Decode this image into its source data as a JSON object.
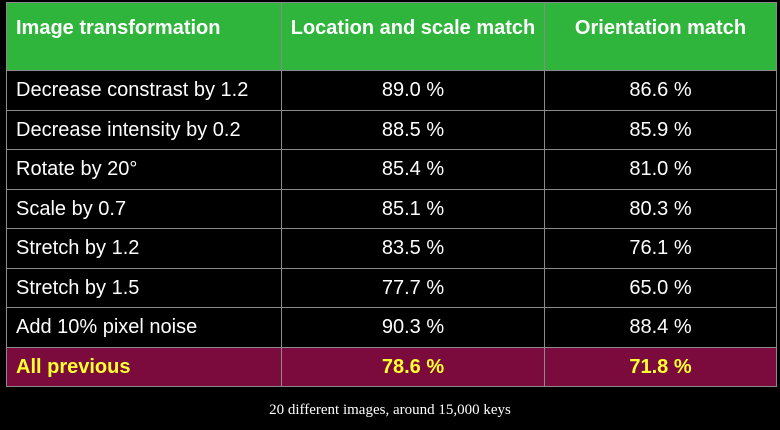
{
  "table": {
    "headers": [
      "Image transformation",
      "Location and scale match",
      "Orientation match"
    ],
    "rows": [
      [
        "Decrease constrast by 1.2",
        "89.0 %",
        "86.6 %"
      ],
      [
        "Decrease intensity by 0.2",
        "88.5 %",
        "85.9 %"
      ],
      [
        "Rotate by 20°",
        "85.4 %",
        "81.0 %"
      ],
      [
        "Scale by 0.7",
        "85.1 %",
        "80.3 %"
      ],
      [
        "Stretch by 1.2",
        "83.5 %",
        "76.1 %"
      ],
      [
        "Stretch by 1.5",
        "77.7 %",
        "65.0 %"
      ],
      [
        "Add 10% pixel noise",
        "90.3 %",
        "88.4 %"
      ]
    ],
    "total": [
      "All previous",
      "78.6 %",
      "71.8 %"
    ]
  },
  "footnote": "20 different images, around 15,000 keys",
  "colors": {
    "header_background": "#2fb53c",
    "header_text": "#ffffff",
    "body_background": "#000000",
    "body_text": "#ffffff",
    "total_background": "#7a0b3c",
    "total_text": "#ffff33",
    "grid_lines": "#8a8a8a"
  }
}
